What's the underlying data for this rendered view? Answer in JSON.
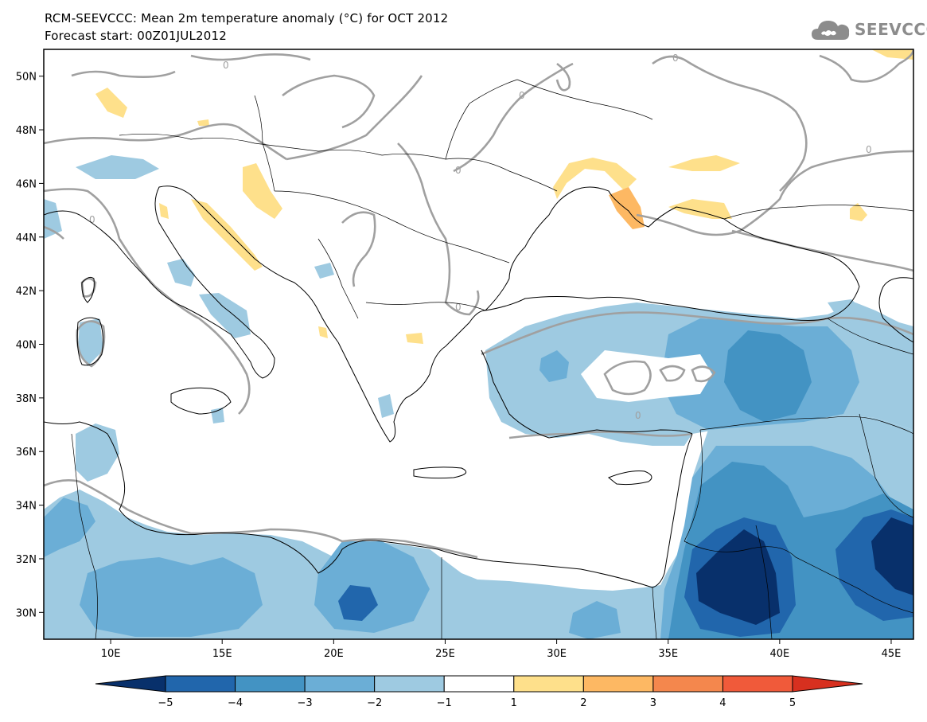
{
  "header": {
    "title": "RCM-SEEVCCC: Mean 2m temperature anomaly (°C) for OCT 2012",
    "subtitle": "Forecast start: 00Z01JUL2012"
  },
  "logo": {
    "text": "SEEVCCC",
    "icon": "cloud-icon"
  },
  "map": {
    "lon_range": [
      7,
      46
    ],
    "lat_range": [
      29,
      51
    ],
    "lat_ticks": [
      "50N",
      "48N",
      "46N",
      "44N",
      "42N",
      "40N",
      "38N",
      "36N",
      "34N",
      "32N",
      "30N"
    ],
    "lon_ticks": [
      "10E",
      "15E",
      "20E",
      "25E",
      "30E",
      "35E",
      "40E",
      "45E"
    ],
    "contour_label": "0"
  },
  "colorbar": {
    "levels": [
      "−5",
      "−4",
      "−3",
      "−2",
      "−1",
      "1",
      "2",
      "3",
      "4",
      "5"
    ],
    "colors": [
      "#08306b",
      "#2166ac",
      "#4393c3",
      "#6baed6",
      "#9ecae1",
      "#ffffff",
      "#fee08b",
      "#fdb863",
      "#f4874d",
      "#f05a3a",
      "#d7301f"
    ]
  }
}
